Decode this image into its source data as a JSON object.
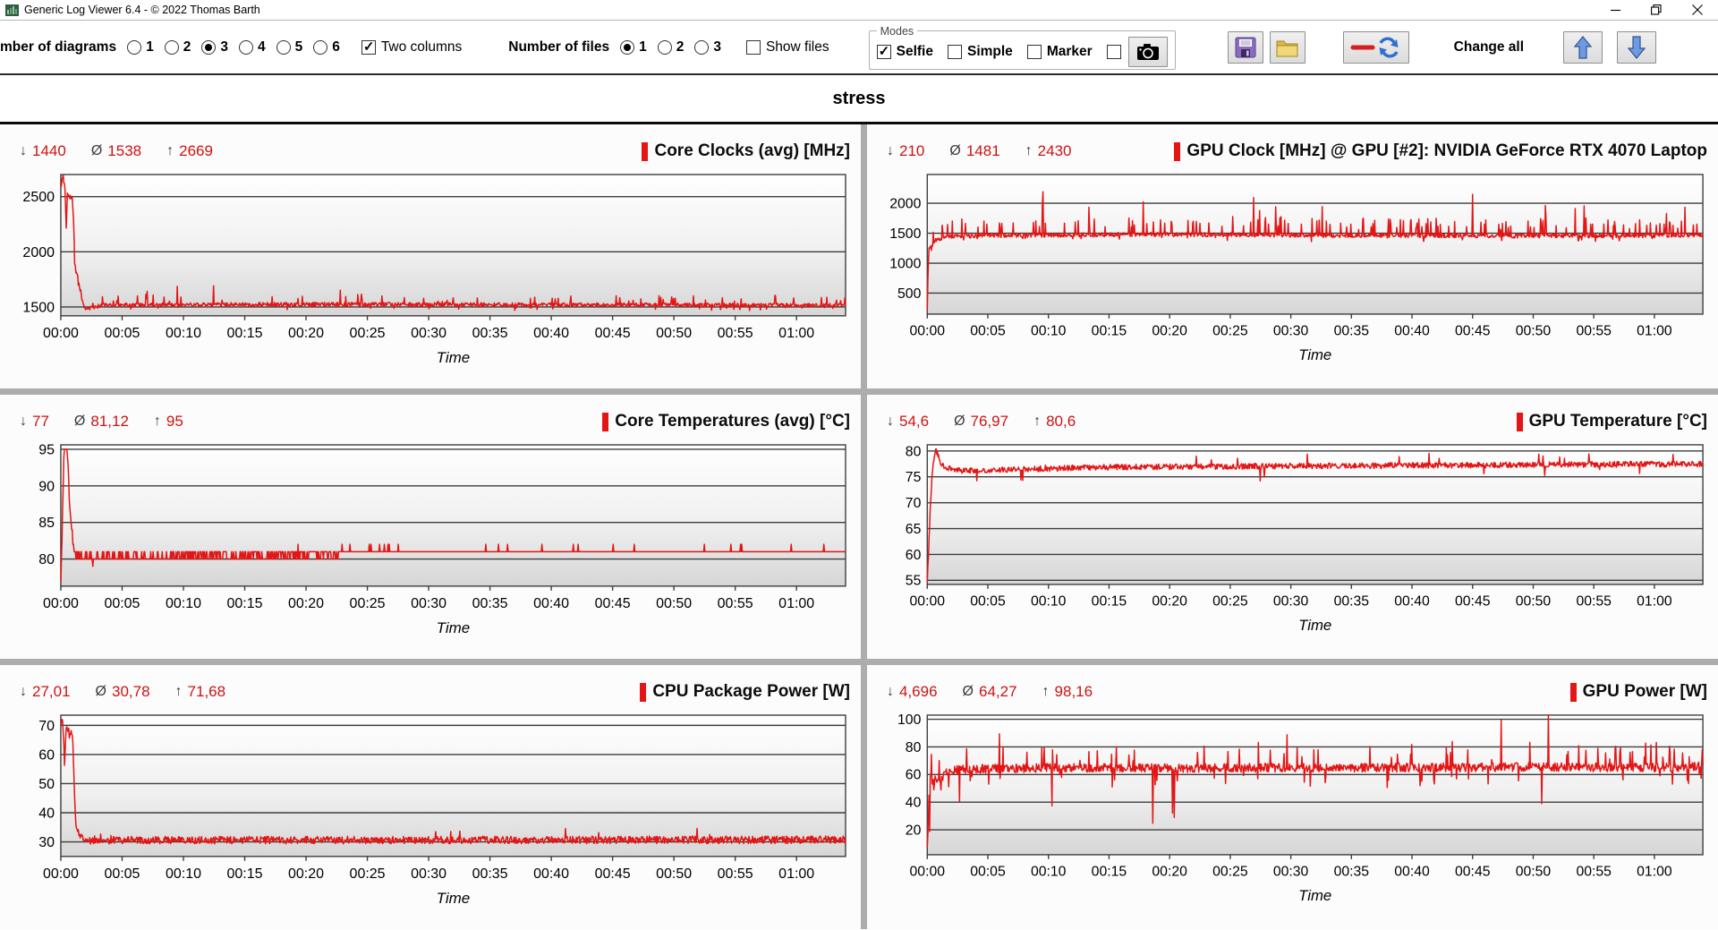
{
  "window": {
    "title": "Generic Log Viewer 6.4 - © 2022 Thomas Barth"
  },
  "header": {
    "title": "stress"
  },
  "symbols": {
    "min": "↓",
    "avg": "Ø",
    "max": "↑"
  },
  "toolbar": {
    "diagrams_label": "mber of diagrams",
    "diagram_options": [
      {
        "label": "1",
        "selected": false
      },
      {
        "label": "2",
        "selected": false
      },
      {
        "label": "3",
        "selected": true
      },
      {
        "label": "4",
        "selected": false
      },
      {
        "label": "5",
        "selected": false
      },
      {
        "label": "6",
        "selected": false
      }
    ],
    "two_columns": {
      "label": "Two columns",
      "checked": true
    },
    "files_label": "Number of files",
    "file_options": [
      {
        "label": "1",
        "selected": true
      },
      {
        "label": "2",
        "selected": false
      },
      {
        "label": "3",
        "selected": false
      }
    ],
    "show_files": {
      "label": "Show files",
      "checked": false
    },
    "modes": {
      "legend": "Modes",
      "items": [
        {
          "label": "Selfie",
          "checked": true
        },
        {
          "label": "Simple",
          "checked": false
        },
        {
          "label": "Marker",
          "checked": false
        },
        {
          "label": "",
          "checked": false
        }
      ]
    },
    "change_all_label": "Change all"
  },
  "chart_data": [
    {
      "type": "line",
      "title": "Core Clocks (avg) [MHz]",
      "series_color": "#e31515",
      "stats": {
        "min": "1440",
        "avg": "1538",
        "max": "2669"
      },
      "xlabel": "Time",
      "x_ticks": [
        "00:00",
        "00:05",
        "00:10",
        "00:15",
        "00:20",
        "00:25",
        "00:30",
        "00:35",
        "00:40",
        "00:45",
        "00:50",
        "00:55",
        "01:00"
      ],
      "x_range_seconds": [
        0,
        3840
      ],
      "y_ticks": [
        1500,
        2000,
        2500
      ],
      "ylim": [
        1420,
        2700
      ],
      "keypoints": [
        [
          0,
          2580
        ],
        [
          8,
          2669
        ],
        [
          14,
          2640
        ],
        [
          20,
          2630
        ],
        [
          26,
          2200
        ],
        [
          32,
          2520
        ],
        [
          44,
          2500
        ],
        [
          56,
          2480
        ],
        [
          62,
          2300
        ],
        [
          68,
          1900
        ],
        [
          74,
          1820
        ],
        [
          82,
          1780
        ],
        [
          88,
          1720
        ],
        [
          96,
          1620
        ],
        [
          105,
          1560
        ],
        [
          115,
          1500
        ],
        [
          130,
          1480
        ],
        [
          200,
          1515
        ],
        [
          600,
          1520
        ],
        [
          1200,
          1525
        ],
        [
          2400,
          1520
        ],
        [
          3840,
          1515
        ]
      ],
      "noise": {
        "amp": 18,
        "quantize": 0,
        "spikes": [
          {
            "prob": 0.05,
            "amp": 90,
            "dir": 1
          },
          {
            "prob": 0.006,
            "amp": 170,
            "dir": 1
          },
          {
            "prob": 0.03,
            "amp": 40,
            "dir": -1
          }
        ]
      }
    },
    {
      "type": "line",
      "title": "GPU Clock [MHz] @ GPU [#2]: NVIDIA GeForce RTX 4070 Laptop",
      "series_color": "#e31515",
      "stats": {
        "min": "210",
        "avg": "1481",
        "max": "2430"
      },
      "xlabel": "Time",
      "x_ticks": [
        "00:00",
        "00:05",
        "00:10",
        "00:15",
        "00:20",
        "00:25",
        "00:30",
        "00:35",
        "00:40",
        "00:45",
        "00:50",
        "00:55",
        "01:00"
      ],
      "x_range_seconds": [
        0,
        3840
      ],
      "y_ticks": [
        500,
        1000,
        1500,
        2000
      ],
      "ylim": [
        150,
        2480
      ],
      "keypoints": [
        [
          0,
          210
        ],
        [
          4,
          900
        ],
        [
          8,
          1250
        ],
        [
          14,
          1300
        ],
        [
          20,
          1280
        ],
        [
          40,
          1380
        ],
        [
          70,
          1420
        ],
        [
          120,
          1450
        ],
        [
          300,
          1460
        ],
        [
          600,
          1470
        ],
        [
          1200,
          1480
        ],
        [
          1800,
          1470
        ],
        [
          2400,
          1460
        ],
        [
          3000,
          1455
        ],
        [
          3600,
          1460
        ],
        [
          3840,
          1470
        ]
      ],
      "noise": {
        "amp": 35,
        "quantize": 0,
        "spikes": [
          {
            "prob": 0.1,
            "amp": 280,
            "dir": 1
          },
          {
            "prob": 0.012,
            "amp": 750,
            "dir": 1
          },
          {
            "prob": 0.02,
            "amp": 90,
            "dir": -1
          }
        ]
      }
    },
    {
      "type": "line",
      "title": "Core Temperatures (avg) [°C]",
      "series_color": "#e31515",
      "stats": {
        "min": "77",
        "avg": "81,12",
        "max": "95"
      },
      "xlabel": "Time",
      "x_ticks": [
        "00:00",
        "00:05",
        "00:10",
        "00:15",
        "00:20",
        "00:25",
        "00:30",
        "00:35",
        "00:40",
        "00:45",
        "00:50",
        "00:55",
        "01:00"
      ],
      "x_range_seconds": [
        0,
        3840
      ],
      "y_ticks": [
        80,
        85,
        90,
        95
      ],
      "ylim": [
        76.3,
        95.6
      ],
      "keypoints": [
        [
          0,
          77
        ],
        [
          6,
          83
        ],
        [
          10,
          88
        ],
        [
          14,
          93
        ],
        [
          18,
          95
        ],
        [
          30,
          95
        ],
        [
          34,
          94
        ],
        [
          38,
          91
        ],
        [
          44,
          87
        ],
        [
          50,
          85
        ],
        [
          56,
          83.5
        ],
        [
          62,
          82
        ],
        [
          70,
          81
        ],
        [
          80,
          80.3
        ],
        [
          150,
          80.2
        ],
        [
          163,
          79.3
        ],
        [
          175,
          80.2
        ],
        [
          300,
          80.35
        ],
        [
          1300,
          80.55
        ],
        [
          1400,
          81.05
        ],
        [
          3840,
          81.05
        ]
      ],
      "noise": {
        "amp": 0.45,
        "quantize": 1,
        "spikes": [
          {
            "prob": 0.02,
            "amp": 1,
            "dir": 1
          }
        ]
      }
    },
    {
      "type": "line",
      "title": "GPU Temperature [°C]",
      "series_color": "#e31515",
      "stats": {
        "min": "54,6",
        "avg": "76,97",
        "max": "80,6"
      },
      "xlabel": "Time",
      "x_ticks": [
        "00:00",
        "00:05",
        "00:10",
        "00:15",
        "00:20",
        "00:25",
        "00:30",
        "00:35",
        "00:40",
        "00:45",
        "00:50",
        "00:55",
        "01:00"
      ],
      "x_range_seconds": [
        0,
        3840
      ],
      "y_ticks": [
        55,
        60,
        65,
        70,
        75,
        80
      ],
      "ylim": [
        54.2,
        81.2
      ],
      "keypoints": [
        [
          0,
          54.6
        ],
        [
          8,
          62
        ],
        [
          16,
          70
        ],
        [
          24,
          75
        ],
        [
          34,
          79
        ],
        [
          44,
          80.2
        ],
        [
          54,
          79
        ],
        [
          70,
          77.5
        ],
        [
          90,
          76.8
        ],
        [
          150,
          76.2
        ],
        [
          400,
          76.4
        ],
        [
          800,
          76.8
        ],
        [
          1400,
          77.0
        ],
        [
          2400,
          77.2
        ],
        [
          3840,
          77.5
        ]
      ],
      "noise": {
        "amp": 0.55,
        "quantize": 0,
        "spikes": [
          {
            "prob": 0.012,
            "amp": 2.2,
            "dir": 1
          },
          {
            "prob": 0.008,
            "amp": 2.6,
            "dir": -1
          }
        ]
      }
    },
    {
      "type": "line",
      "title": "CPU Package Power [W]",
      "series_color": "#e31515",
      "stats": {
        "min": "27,01",
        "avg": "30,78",
        "max": "71,68"
      },
      "xlabel": "Time",
      "x_ticks": [
        "00:00",
        "00:05",
        "00:10",
        "00:15",
        "00:20",
        "00:25",
        "00:30",
        "00:35",
        "00:40",
        "00:45",
        "00:50",
        "00:55",
        "01:00"
      ],
      "x_range_seconds": [
        0,
        3840
      ],
      "y_ticks": [
        30,
        40,
        50,
        60,
        70
      ],
      "ylim": [
        25,
        73.5
      ],
      "keypoints": [
        [
          0,
          69
        ],
        [
          5,
          71.5
        ],
        [
          10,
          70
        ],
        [
          14,
          66
        ],
        [
          18,
          53
        ],
        [
          22,
          62
        ],
        [
          26,
          70
        ],
        [
          34,
          69.5
        ],
        [
          44,
          66
        ],
        [
          52,
          68
        ],
        [
          58,
          66
        ],
        [
          64,
          52
        ],
        [
          70,
          40
        ],
        [
          76,
          35
        ],
        [
          84,
          33.5
        ],
        [
          95,
          32
        ],
        [
          110,
          31
        ],
        [
          130,
          30.5
        ],
        [
          600,
          30.6
        ],
        [
          3840,
          30.7
        ]
      ],
      "noise": {
        "amp": 1.3,
        "quantize": 0,
        "spikes": [
          {
            "prob": 0.012,
            "amp": 3.5,
            "dir": 1
          }
        ]
      }
    },
    {
      "type": "line",
      "title": "GPU Power [W]",
      "series_color": "#e31515",
      "stats": {
        "min": "4,696",
        "avg": "64,27",
        "max": "98,16"
      },
      "xlabel": "Time",
      "x_ticks": [
        "00:00",
        "00:05",
        "00:10",
        "00:15",
        "00:20",
        "00:25",
        "00:30",
        "00:35",
        "00:40",
        "00:45",
        "00:50",
        "00:55",
        "01:00"
      ],
      "x_range_seconds": [
        0,
        3840
      ],
      "y_ticks": [
        20,
        40,
        60,
        80,
        100
      ],
      "ylim": [
        2,
        103
      ],
      "keypoints": [
        [
          0,
          4.7
        ],
        [
          6,
          30
        ],
        [
          10,
          55
        ],
        [
          14,
          56
        ],
        [
          62,
          56
        ],
        [
          75,
          58
        ],
        [
          90,
          61
        ],
        [
          120,
          63
        ],
        [
          200,
          64
        ],
        [
          600,
          65
        ],
        [
          1200,
          64.5
        ],
        [
          1800,
          65
        ],
        [
          2400,
          65
        ],
        [
          3000,
          65.5
        ],
        [
          3600,
          65
        ],
        [
          3840,
          66
        ]
      ],
      "noise": {
        "amp": 3.2,
        "quantize": 0,
        "spikes": [
          {
            "prob": 0.05,
            "amp": 16,
            "dir": 1
          },
          {
            "prob": 0.007,
            "amp": 38,
            "dir": 1
          },
          {
            "prob": 0.03,
            "amp": 12,
            "dir": -1
          },
          {
            "prob": 0.005,
            "amp": 42,
            "dir": -1
          }
        ]
      }
    }
  ]
}
